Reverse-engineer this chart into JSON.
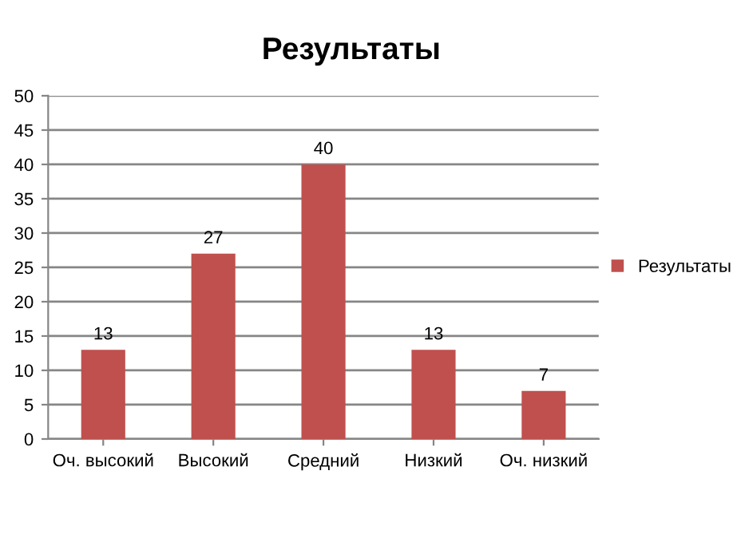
{
  "chart_data": {
    "type": "bar",
    "title": "Результаты",
    "categories": [
      "Оч. высокий",
      "Высокий",
      "Средний",
      "Низкий",
      "Оч. низкий"
    ],
    "series": [
      {
        "name": "Результаты",
        "color": "#c0504d",
        "values": [
          13,
          27,
          40,
          13,
          7
        ]
      }
    ],
    "ylim": [
      0,
      50
    ],
    "yticks": [
      0,
      5,
      10,
      15,
      20,
      25,
      30,
      35,
      40,
      45,
      50
    ],
    "grid": "y",
    "legend": "right",
    "data_labels": true
  }
}
